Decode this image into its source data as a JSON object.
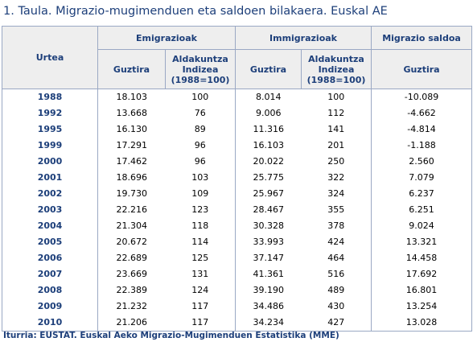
{
  "title": "1. Taula. Migrazio-mugimenduen eta saldoen bilakaera. Euskal AE",
  "header": {
    "urtea": "Urtea",
    "emigrazioak": "Emigrazioak",
    "immigrazioak": "Immigrazioak",
    "migrazio_saldoa": "Migrazio saldoa",
    "guztira": "Guztira",
    "aldakuntza_1": "Aldakuntza",
    "aldakuntza_2": "Indizea",
    "aldakuntza_3": "(1988=100)"
  },
  "rows": [
    {
      "year": "1988",
      "emi": "18.103",
      "emi_idx": "100",
      "imm": "8.014",
      "imm_idx": "100",
      "saldo": "-10.089"
    },
    {
      "year": "1992",
      "emi": "13.668",
      "emi_idx": "76",
      "imm": "9.006",
      "imm_idx": "112",
      "saldo": "-4.662"
    },
    {
      "year": "1995",
      "emi": "16.130",
      "emi_idx": "89",
      "imm": "11.316",
      "imm_idx": "141",
      "saldo": "-4.814"
    },
    {
      "year": "1999",
      "emi": "17.291",
      "emi_idx": "96",
      "imm": "16.103",
      "imm_idx": "201",
      "saldo": "-1.188"
    },
    {
      "year": "2000",
      "emi": "17.462",
      "emi_idx": "96",
      "imm": "20.022",
      "imm_idx": "250",
      "saldo": "2.560"
    },
    {
      "year": "2001",
      "emi": "18.696",
      "emi_idx": "103",
      "imm": "25.775",
      "imm_idx": "322",
      "saldo": "7.079"
    },
    {
      "year": "2002",
      "emi": "19.730",
      "emi_idx": "109",
      "imm": "25.967",
      "imm_idx": "324",
      "saldo": "6.237"
    },
    {
      "year": "2003",
      "emi": "22.216",
      "emi_idx": "123",
      "imm": "28.467",
      "imm_idx": "355",
      "saldo": "6.251"
    },
    {
      "year": "2004",
      "emi": "21.304",
      "emi_idx": "118",
      "imm": "30.328",
      "imm_idx": "378",
      "saldo": "9.024"
    },
    {
      "year": "2005",
      "emi": "20.672",
      "emi_idx": "114",
      "imm": "33.993",
      "imm_idx": "424",
      "saldo": "13.321"
    },
    {
      "year": "2006",
      "emi": "22.689",
      "emi_idx": "125",
      "imm": "37.147",
      "imm_idx": "464",
      "saldo": "14.458"
    },
    {
      "year": "2007",
      "emi": "23.669",
      "emi_idx": "131",
      "imm": "41.361",
      "imm_idx": "516",
      "saldo": "17.692"
    },
    {
      "year": "2008",
      "emi": "22.389",
      "emi_idx": "124",
      "imm": "39.190",
      "imm_idx": "489",
      "saldo": "16.801"
    },
    {
      "year": "2009",
      "emi": "21.232",
      "emi_idx": "117",
      "imm": "34.486",
      "imm_idx": "430",
      "saldo": "13.254"
    },
    {
      "year": "2010",
      "emi": "21.206",
      "emi_idx": "117",
      "imm": "34.234",
      "imm_idx": "427",
      "saldo": "13.028"
    }
  ],
  "source": "Iturria: EUSTAT. Euskal Aeko Migrazio-Mugimenduen Estatistika (MME)"
}
